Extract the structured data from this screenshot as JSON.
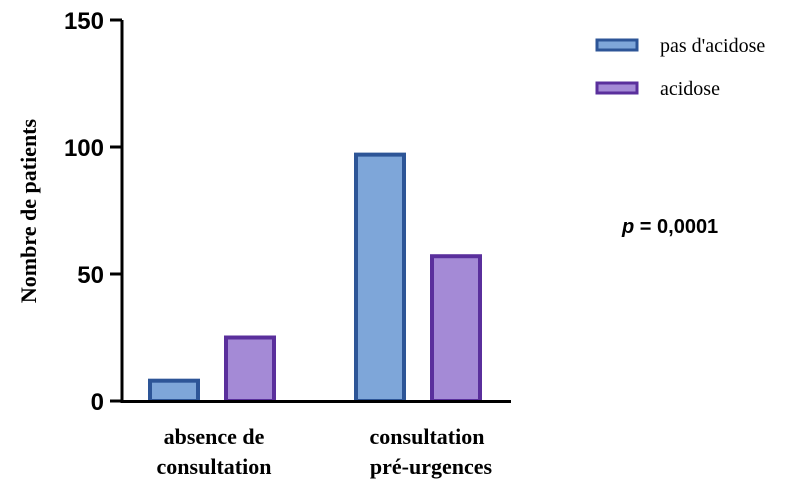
{
  "chart_data": {
    "type": "bar",
    "categories": [
      [
        "absence de",
        "consultation"
      ],
      [
        "consultation",
        "pré-urgences"
      ]
    ],
    "series": [
      {
        "name": "pas d'acidose",
        "values": [
          8,
          97
        ],
        "fill": "#7ea6d9",
        "stroke": "#2d5597"
      },
      {
        "name": "acidose",
        "values": [
          25,
          57
        ],
        "fill": "#a48ad6",
        "stroke": "#5a2f9c"
      }
    ],
    "ylabel": "Nombre de patients",
    "ylim": [
      0,
      150
    ],
    "yticks": [
      "0",
      "50",
      "100",
      "150"
    ],
    "legend_position": "top-right",
    "grid": false,
    "annotation": {
      "p_symbol": "p",
      "rest": " = 0,0001"
    }
  }
}
